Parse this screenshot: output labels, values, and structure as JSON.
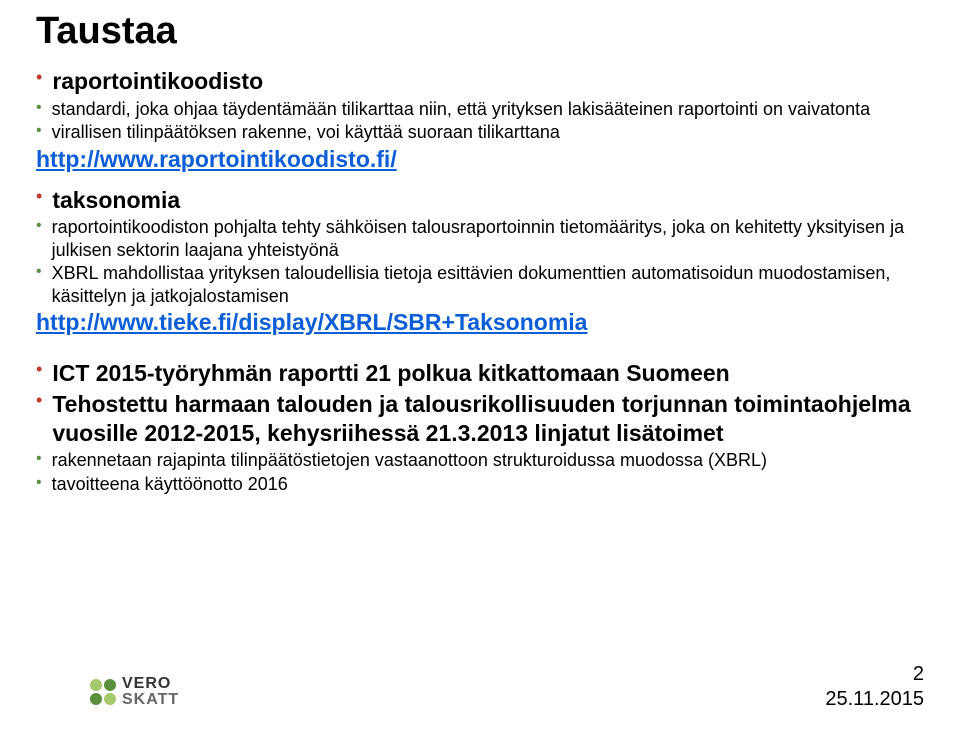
{
  "title": "Taustaa",
  "sec1": {
    "heading": "raportointikoodisto",
    "p1": "standardi, joka ohjaa täydentämään tilikarttaa niin, että yrityksen lakisääteinen raportointi on vaivatonta",
    "p2": "virallisen tilinpäätöksen rakenne, voi käyttää suoraan tilikarttana",
    "link": "http://www.raportointikoodisto.fi/"
  },
  "sec2": {
    "heading": "taksonomia",
    "p1": "raportointikoodiston pohjalta tehty sähköisen talousraportoinnin tietomääritys, joka on kehitetty yksityisen ja julkisen sektorin laajana yhteistyönä",
    "p2": "XBRL mahdollistaa yrityksen taloudellisia tietoja esittävien dokumenttien automatisoidun muodostamisen, käsittelyn ja jatkojalostamisen",
    "link": "http://www.tieke.fi/display/XBRL/SBR+Taksonomia"
  },
  "sec3": {
    "p1": "ICT 2015-työryhmän raportti 21 polkua kitkattomaan Suomeen",
    "p2": "Tehostettu harmaan talouden ja talousrikollisuuden torjunnan toimintaohjelma vuosille 2012-2015, kehysriihessä 21.3.2013 linjatut lisätoimet",
    "sub1": "rakennetaan rajapinta tilinpäätöstietojen vastaanottoon strukturoidussa muodossa (XBRL)",
    "sub2": "tavoitteena käyttöönotto 2016"
  },
  "footer": {
    "page": "2",
    "date": "25.11.2015"
  },
  "logo": {
    "top": "VERO",
    "bottom": "SKATT"
  },
  "colors": {
    "bullet_red": "#c0392b",
    "bullet_green": "#5a8f3e",
    "link": "#0b5ed7",
    "background": "#ffffff"
  },
  "fonts": {
    "title_size_pt": 29,
    "heading_size_pt": 17,
    "body_size_pt": 16,
    "sub_size_pt": 14
  }
}
